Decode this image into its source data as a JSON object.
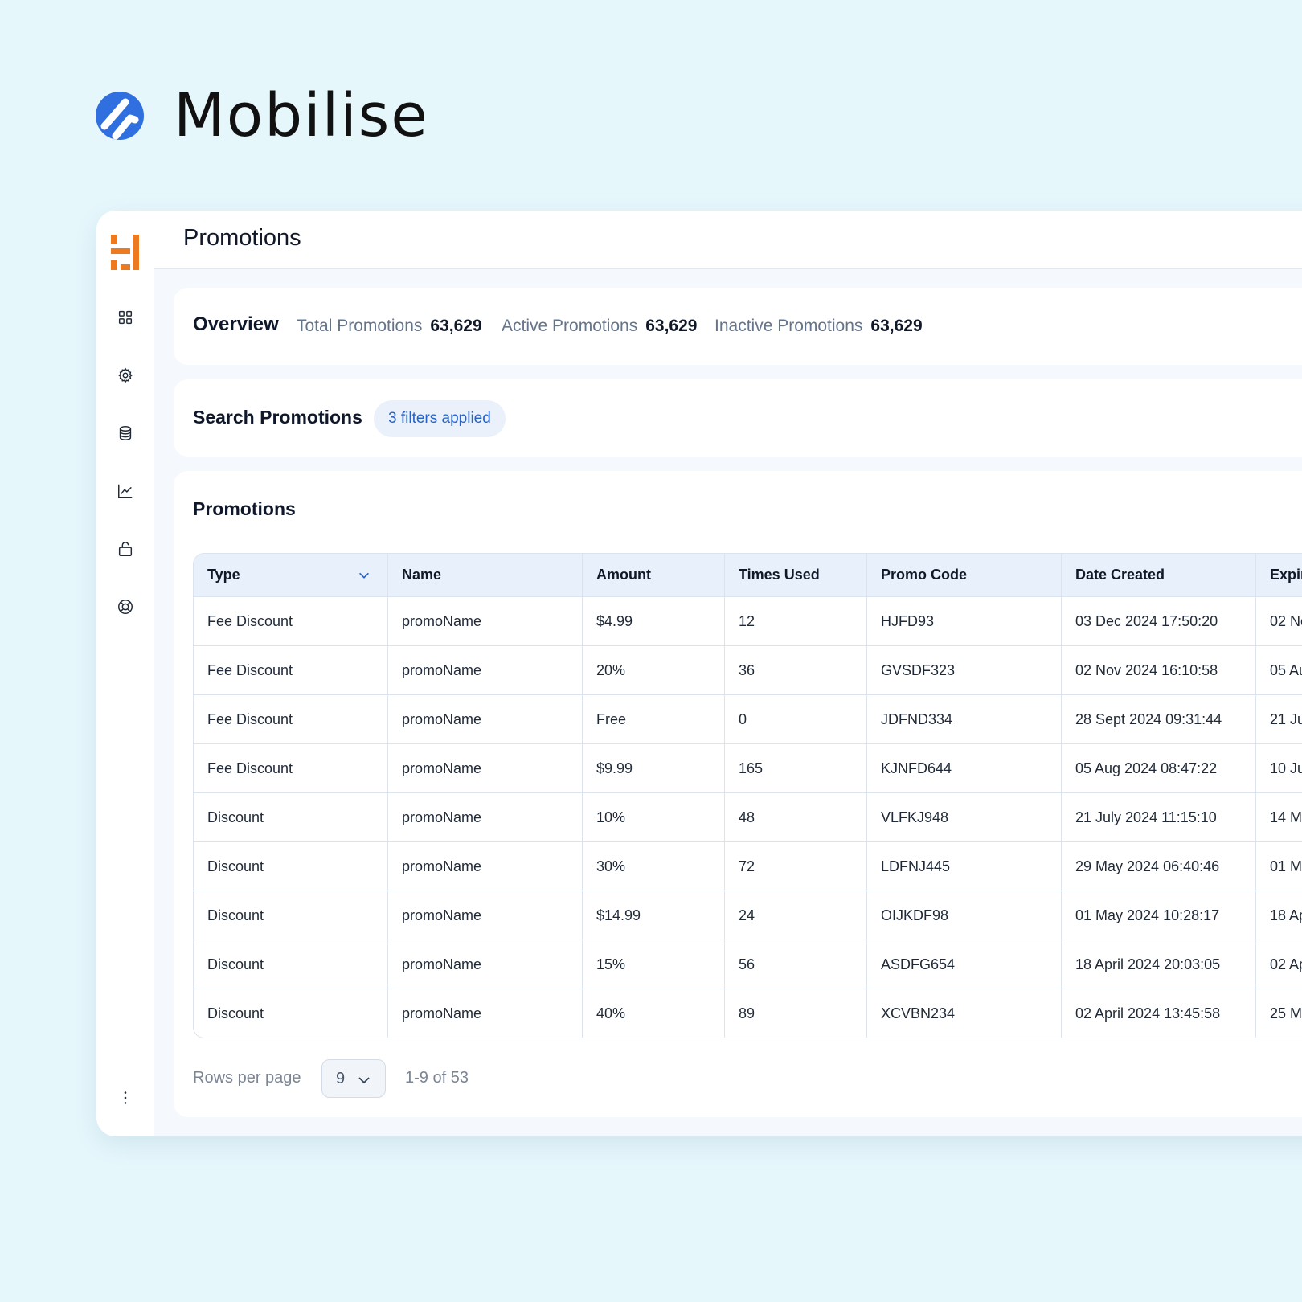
{
  "brand": {
    "name": "Mobilise",
    "logo_icon": "mobilise-logo-icon"
  },
  "sidebar": {
    "logo_icon": "app-logo-icon",
    "items": [
      {
        "icon": "grid-icon"
      },
      {
        "icon": "gear-icon"
      },
      {
        "icon": "database-icon"
      },
      {
        "icon": "line-chart-icon"
      },
      {
        "icon": "lock-icon"
      },
      {
        "icon": "lifebuoy-icon"
      }
    ],
    "more_icon": "more-vertical-icon"
  },
  "header": {
    "title": "Promotions"
  },
  "overview": {
    "title": "Overview",
    "stats": [
      {
        "label": "Total Promotions",
        "value": "63,629"
      },
      {
        "label": "Active Promotions",
        "value": "63,629"
      },
      {
        "label": "Inactive Promotions",
        "value": "63,629"
      }
    ]
  },
  "search": {
    "title": "Search Promotions",
    "filters_chip": "3 filters applied"
  },
  "table": {
    "title": "Promotions",
    "columns": [
      "Type",
      "Name",
      "Amount",
      "Times Used",
      "Promo Code",
      "Date Created",
      "Expir"
    ],
    "rows": [
      [
        "Fee Discount",
        "promoName",
        "$4.99",
        "12",
        "HJFD93",
        "03 Dec 2024 17:50:20",
        "02 No"
      ],
      [
        "Fee Discount",
        "promoName",
        "20%",
        "36",
        "GVSDF323",
        "02 Nov 2024 16:10:58",
        "05 Au"
      ],
      [
        "Fee Discount",
        "promoName",
        "Free",
        "0",
        "JDFND334",
        "28 Sept 2024 09:31:44",
        "21 Ju"
      ],
      [
        "Fee Discount",
        "promoName",
        "$9.99",
        "165",
        "KJNFD644",
        "05 Aug 2024 08:47:22",
        "10 Ju"
      ],
      [
        "Discount",
        "promoName",
        "10%",
        "48",
        "VLFKJ948",
        "21 July 2024 11:15:10",
        "14 M"
      ],
      [
        "Discount",
        "promoName",
        "30%",
        "72",
        "LDFNJ445",
        "29 May 2024 06:40:46",
        "01 M"
      ],
      [
        "Discount",
        "promoName",
        "$14.99",
        "24",
        "OIJKDF98",
        "01 May 2024 10:28:17",
        "18 Ap"
      ],
      [
        "Discount",
        "promoName",
        "15%",
        "56",
        "ASDFG654",
        "18 April 2024 20:03:05",
        "02 Ap"
      ],
      [
        "Discount",
        "promoName",
        "40%",
        "89",
        "XCVBN234",
        "02 April 2024 13:45:58",
        "25 M"
      ]
    ]
  },
  "pagination": {
    "rows_label": "Rows per page",
    "rows_value": "9",
    "range": "1-9 of 53"
  },
  "colors": {
    "background": "#e6f7fc",
    "brand_blue": "#2f6fe0",
    "accent_orange": "#ee7a1f",
    "chip_text": "#2563c9"
  }
}
